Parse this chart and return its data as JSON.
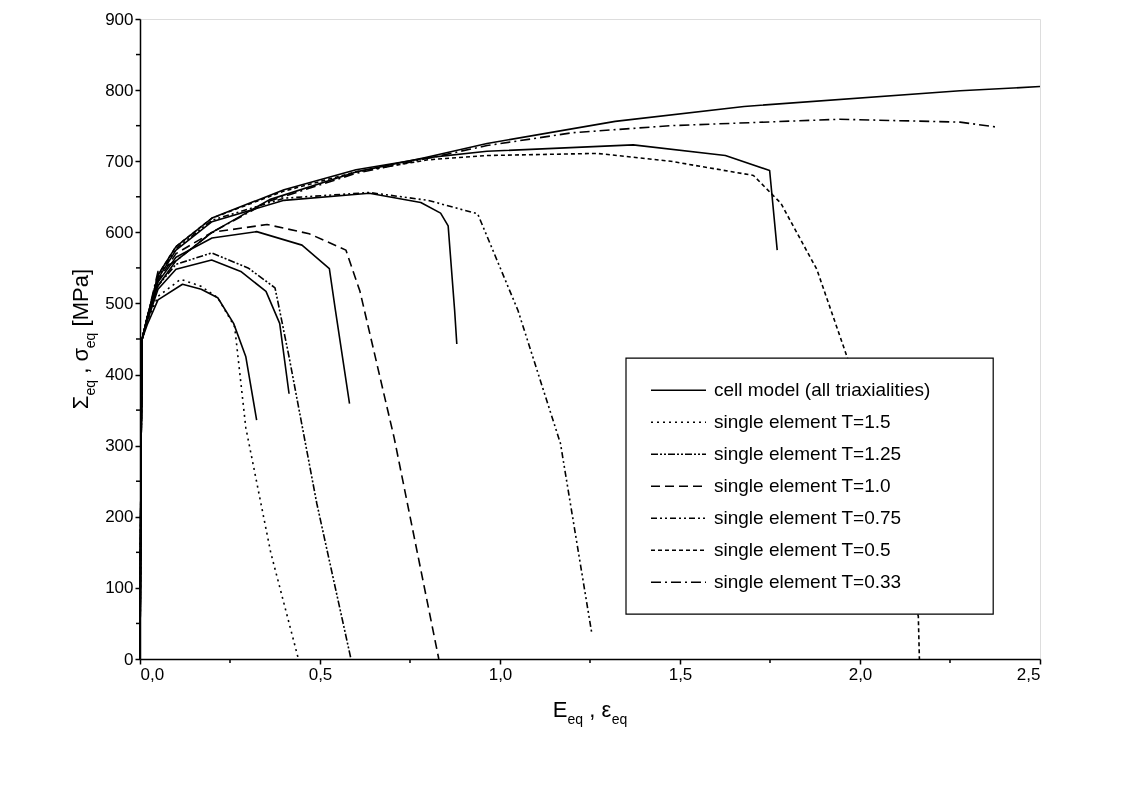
{
  "chart_data": {
    "type": "line",
    "xlabel": "E$_{eq}$ , ε$_{eq}$",
    "ylabel": "Σ$_{eq}$ , σ$_{eq}$ [MPa]",
    "xlim": [
      0,
      2.5
    ],
    "ylim": [
      0,
      900
    ],
    "xticks": [
      {
        "value": 0,
        "label": "0,0"
      },
      {
        "value": 0.25,
        "label": null
      },
      {
        "value": 0.5,
        "label": "0,5"
      },
      {
        "value": 0.75,
        "label": null
      },
      {
        "value": 1.0,
        "label": "1,0"
      },
      {
        "value": 1.25,
        "label": null
      },
      {
        "value": 1.5,
        "label": "1,5"
      },
      {
        "value": 1.75,
        "label": null
      },
      {
        "value": 2.0,
        "label": "2,0"
      },
      {
        "value": 2.25,
        "label": null
      },
      {
        "value": 2.5,
        "label": "2,5"
      }
    ],
    "yticks": [
      0,
      {
        "value": 50,
        "label": null
      },
      100,
      {
        "value": 150,
        "label": null
      },
      200,
      {
        "value": 250,
        "label": null
      },
      300,
      {
        "value": 350,
        "label": null
      },
      400,
      {
        "value": 450,
        "label": null
      },
      500,
      {
        "value": 550,
        "label": null
      },
      600,
      {
        "value": 650,
        "label": null
      },
      700,
      {
        "value": 750,
        "label": null
      },
      800,
      {
        "value": 850,
        "label": null
      },
      900
    ],
    "grid": false,
    "legend": "bottom right",
    "marker": "none",
    "series": [
      {
        "name": "cell model (all triaxialities)",
        "color": "#000000",
        "line_style": "solid",
        "x": [
          0,
          0.003,
          0.006,
          0.02,
          0.05,
          0.1,
          0.2,
          0.36,
          0.6,
          0.79,
          0.964,
          1.32,
          1.678,
          2.278,
          2.5
        ],
        "values": [
          0,
          300,
          450,
          480,
          525,
          560,
          600,
          646,
          685,
          705,
          725,
          756,
          777,
          799,
          805
        ]
      },
      {
        "name": "single element T=1.5",
        "color": "#000000",
        "line_style": "dotted",
        "x": [
          0,
          0.003,
          0.006,
          0.02,
          0.05,
          0.113,
          0.17,
          0.216,
          0.263,
          0.294,
          0.363,
          0.44
        ],
        "values": [
          0,
          300,
          450,
          475,
          510,
          534,
          524,
          508,
          467,
          325,
          150,
          0
        ]
      },
      {
        "name": "single element T=1.25",
        "color": "#000000",
        "line_style": "dashdotdot",
        "x": [
          0,
          0.003,
          0.006,
          0.02,
          0.05,
          0.1,
          0.199,
          0.3,
          0.375,
          0.388,
          0.414,
          0.491,
          0.586
        ],
        "values": [
          0,
          300,
          450,
          480,
          525,
          555,
          571,
          550,
          522,
          490,
          425,
          219,
          0
        ]
      },
      {
        "name": "single element T=1.0",
        "color": "#000000",
        "line_style": "dashed",
        "x": [
          0,
          0.003,
          0.006,
          0.02,
          0.05,
          0.1,
          0.2,
          0.353,
          0.47,
          0.572,
          0.611,
          0.706,
          0.83
        ],
        "values": [
          0,
          300,
          450,
          480,
          532,
          570,
          600,
          611,
          598,
          575,
          517,
          311,
          0
        ]
      },
      {
        "name": "single element T=0.75",
        "color": "#000000",
        "line_style": "dashdotdotdot",
        "x": [
          0,
          0.003,
          0.006,
          0.02,
          0.05,
          0.1,
          0.2,
          0.4,
          0.637,
          0.8,
          0.938,
          1.05,
          1.168,
          1.255
        ],
        "values": [
          0,
          300,
          450,
          480,
          537,
          577,
          617,
          648,
          656,
          645,
          626,
          490,
          303,
          36
        ]
      },
      {
        "name": "single element T=0.5",
        "color": "#000000",
        "line_style": "short dashed",
        "x": [
          0,
          0.003,
          0.006,
          0.02,
          0.05,
          0.1,
          0.2,
          0.4,
          0.6,
          0.8,
          0.964,
          1.27,
          1.474,
          1.704,
          1.78,
          1.88,
          1.964,
          2.162,
          2.165
        ],
        "values": [
          0,
          300,
          450,
          480,
          540,
          580,
          620,
          658,
          685,
          702,
          708,
          711,
          700,
          680,
          641,
          548,
          425,
          60,
          0
        ]
      },
      {
        "name": "single element T=0.33",
        "color": "#000000",
        "line_style": "dashdot",
        "x": [
          0,
          0.003,
          0.006,
          0.02,
          0.05,
          0.1,
          0.2,
          0.36,
          0.6,
          0.79,
          0.964,
          1.2,
          1.474,
          1.943,
          2.278,
          2.38
        ],
        "values": [
          0,
          300,
          450,
          480,
          545,
          560,
          600,
          644,
          683,
          703,
          722,
          740,
          750,
          759,
          755,
          748
        ]
      },
      {
        "color": "#000000",
        "line_style": "solid",
        "x": [
          0,
          0.003,
          0.006,
          0.02,
          0.05,
          0.1,
          0.2,
          0.4,
          0.6,
          0.8,
          0.964,
          1.37,
          1.626,
          1.749,
          1.77
        ],
        "values": [
          0,
          300,
          450,
          480,
          540,
          580,
          620,
          660,
          688,
          705,
          714,
          723,
          708,
          687,
          575
        ]
      },
      {
        "color": "#000000",
        "line_style": "solid",
        "x": [
          0,
          0.003,
          0.006,
          0.02,
          0.05,
          0.1,
          0.2,
          0.4,
          0.637,
          0.78,
          0.835,
          0.856,
          0.874,
          0.88
        ],
        "values": [
          0,
          300,
          450,
          480,
          535,
          575,
          615,
          645,
          655,
          642,
          627,
          609,
          490,
          443
        ]
      },
      {
        "color": "#000000",
        "line_style": "solid",
        "x": [
          0,
          0.003,
          0.006,
          0.02,
          0.05,
          0.1,
          0.2,
          0.324,
          0.45,
          0.526,
          0.543,
          0.582
        ],
        "values": [
          0,
          300,
          450,
          480,
          530,
          565,
          592,
          601,
          582,
          549,
          490,
          359
        ]
      },
      {
        "color": "#000000",
        "line_style": "solid",
        "x": [
          0,
          0.003,
          0.006,
          0.02,
          0.05,
          0.1,
          0.199,
          0.28,
          0.35,
          0.388,
          0.414
        ],
        "values": [
          0,
          300,
          450,
          475,
          520,
          548,
          561,
          545,
          517,
          472,
          373
        ]
      },
      {
        "color": "#000000",
        "line_style": "solid",
        "x": [
          0,
          0.003,
          0.006,
          0.02,
          0.05,
          0.118,
          0.17,
          0.216,
          0.26,
          0.294,
          0.324
        ],
        "values": [
          0,
          300,
          450,
          470,
          505,
          527,
          520,
          508,
          472,
          425,
          336
        ]
      }
    ]
  }
}
